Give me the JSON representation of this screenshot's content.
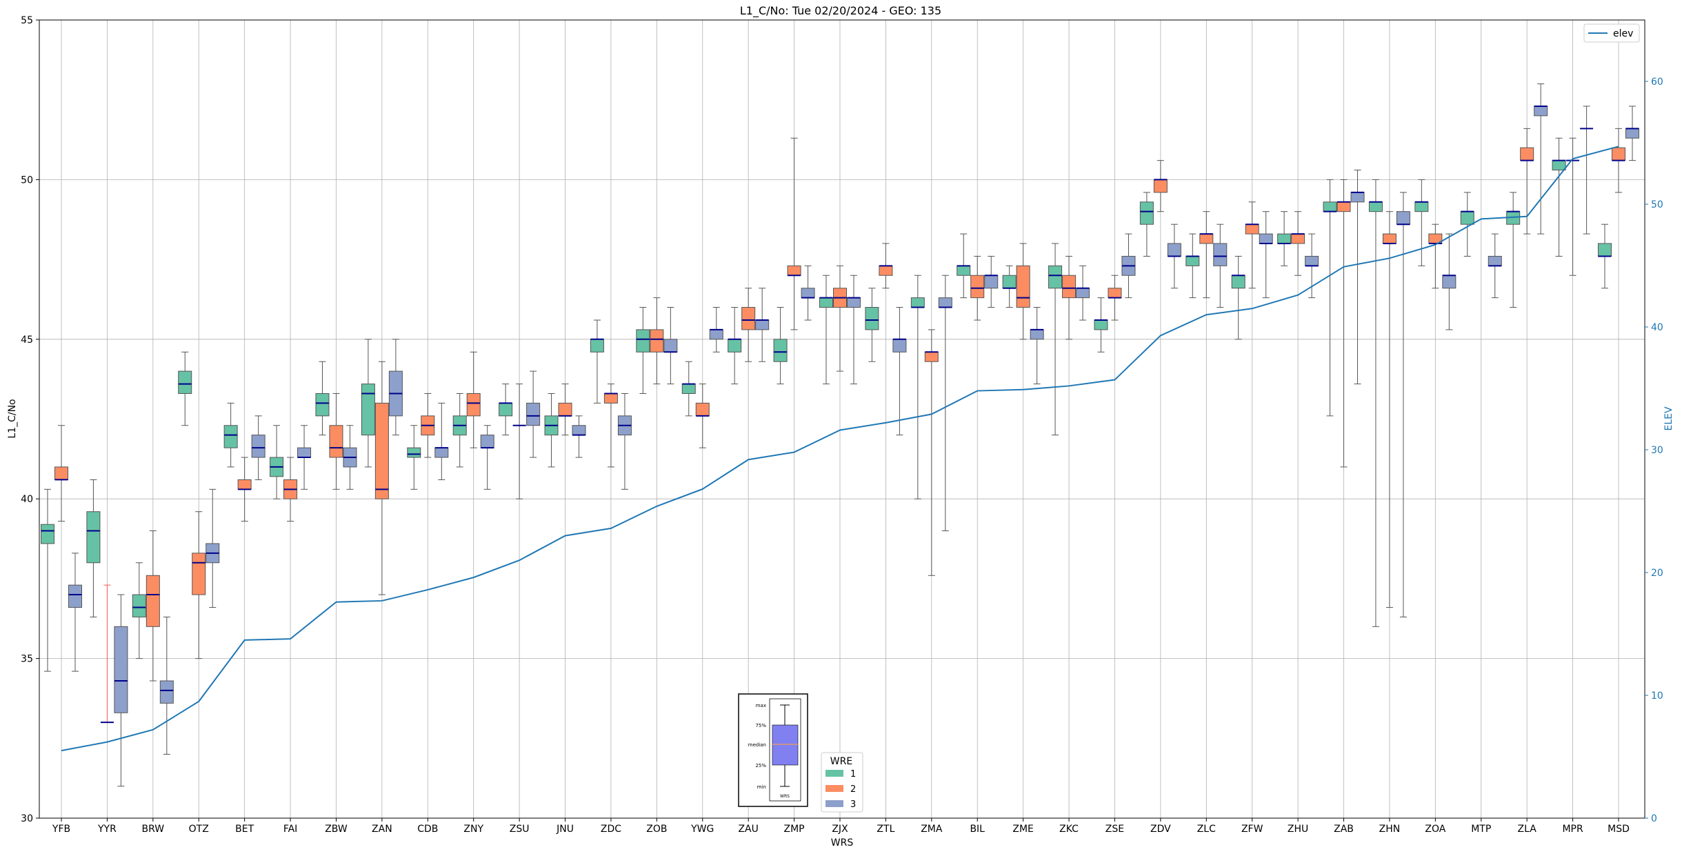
{
  "chart_data": {
    "type": "box",
    "title": "L1_C/No: Tue 02/20/2024 - GEO: 135",
    "xlabel": "WRS",
    "ylabel": "L1_C/No",
    "y2label": "ELEV",
    "ylim": [
      30,
      55
    ],
    "y2lim": [
      0,
      65
    ],
    "yticks": [
      "30",
      "35",
      "40",
      "45",
      "50",
      "55"
    ],
    "y2ticks": [
      "0",
      "10",
      "20",
      "30",
      "40",
      "50",
      "60"
    ],
    "grid": true,
    "categories": [
      "YFB",
      "YYR",
      "BRW",
      "OTZ",
      "BET",
      "FAI",
      "ZBW",
      "ZAN",
      "CDB",
      "ZNY",
      "ZSU",
      "JNU",
      "ZDC",
      "ZOB",
      "YWG",
      "ZAU",
      "ZMP",
      "ZJX",
      "ZTL",
      "ZMA",
      "BIL",
      "ZME",
      "ZKC",
      "ZSE",
      "ZDV",
      "ZLC",
      "ZFW",
      "ZHU",
      "ZAB",
      "ZHN",
      "ZOA",
      "MTP",
      "ZLA",
      "MPR",
      "MSD"
    ],
    "colors": {
      "wre1": "#66c2a5",
      "wre2": "#fc8d62",
      "wre3": "#8da0cb",
      "elev": "#1f77b4",
      "median": "#00008b",
      "outlier_line": "#ff5555"
    },
    "legend_elev": {
      "label": "elev",
      "position": "top-right"
    },
    "legend_wre": {
      "title": "WRE",
      "labels": [
        "1",
        "2",
        "3"
      ],
      "position": "bottom-center"
    },
    "key_box": {
      "labels": [
        "max",
        "75%",
        "median",
        "25%",
        "min"
      ],
      "xlabel": "WRS"
    },
    "series": [
      {
        "name": "1",
        "boxes": [
          [
            34.6,
            38.6,
            39.0,
            39.2,
            40.3
          ],
          [
            36.3,
            38.0,
            39.0,
            39.6,
            40.6
          ],
          [
            35.0,
            36.3,
            36.6,
            37.0,
            38.0
          ],
          [
            42.3,
            43.3,
            43.6,
            44.0,
            44.6
          ],
          [
            41.0,
            41.6,
            42.0,
            42.3,
            43.0
          ],
          [
            40.0,
            40.7,
            41.0,
            41.3,
            42.3
          ],
          [
            42.0,
            42.6,
            43.0,
            43.3,
            44.3
          ],
          [
            41.0,
            42.0,
            43.3,
            43.6,
            45.0
          ],
          [
            40.3,
            41.3,
            41.4,
            41.6,
            42.3
          ],
          [
            41.0,
            42.0,
            42.3,
            42.6,
            43.3
          ],
          [
            42.0,
            42.6,
            43.0,
            43.0,
            43.6
          ],
          [
            41.0,
            42.0,
            42.3,
            42.6,
            43.3
          ],
          [
            43.0,
            44.6,
            45.0,
            45.0,
            45.6
          ],
          [
            43.3,
            44.6,
            45.0,
            45.3,
            46.0
          ],
          [
            42.6,
            43.3,
            43.6,
            43.6,
            44.3
          ],
          [
            43.6,
            44.6,
            45.0,
            45.0,
            46.0
          ],
          [
            43.6,
            44.3,
            44.6,
            45.0,
            46.0
          ],
          [
            43.6,
            46.0,
            46.3,
            46.3,
            47.0
          ],
          [
            44.3,
            45.3,
            45.6,
            46.0,
            46.6
          ],
          [
            40.0,
            46.0,
            46.0,
            46.3,
            47.0
          ],
          [
            46.3,
            47.0,
            47.3,
            47.3,
            48.3
          ],
          [
            46.0,
            46.6,
            46.6,
            47.0,
            47.3
          ],
          [
            42.0,
            46.6,
            47.0,
            47.3,
            48.0
          ],
          [
            44.6,
            45.3,
            45.6,
            45.6,
            46.3
          ],
          [
            47.6,
            48.6,
            49.0,
            49.3,
            49.6
          ],
          [
            46.3,
            47.3,
            47.6,
            47.6,
            48.3
          ],
          [
            45.0,
            46.6,
            47.0,
            47.0,
            47.6
          ],
          [
            47.3,
            48.0,
            48.0,
            48.3,
            49.0
          ],
          [
            42.6,
            49.0,
            49.0,
            49.3,
            50.0
          ],
          [
            36.0,
            49.0,
            49.3,
            49.3,
            50.0
          ],
          [
            47.3,
            49.0,
            49.3,
            49.3,
            50.0
          ],
          [
            47.6,
            48.6,
            49.0,
            49.0,
            49.6
          ],
          [
            46.0,
            48.6,
            49.0,
            49.0,
            49.6
          ],
          [
            47.6,
            50.3,
            50.6,
            50.6,
            51.3
          ],
          [
            46.6,
            47.6,
            47.6,
            48.0,
            48.6
          ]
        ]
      },
      {
        "name": "2",
        "boxes": [
          [
            39.3,
            40.6,
            40.6,
            41.0,
            42.3
          ],
          [
            33.0,
            33.0,
            33.0,
            33.0,
            37.3
          ],
          [
            34.3,
            36.0,
            37.0,
            37.6,
            39.0
          ],
          [
            35.0,
            37.0,
            38.0,
            38.3,
            39.6
          ],
          [
            39.3,
            40.3,
            40.3,
            40.6,
            41.3
          ],
          [
            39.3,
            40.0,
            40.3,
            40.6,
            41.3
          ],
          [
            40.3,
            41.3,
            41.6,
            42.3,
            43.3
          ],
          [
            37.0,
            40.0,
            40.3,
            43.0,
            44.3
          ],
          [
            41.3,
            42.0,
            42.3,
            42.6,
            43.3
          ],
          [
            41.6,
            42.6,
            43.0,
            43.3,
            44.6
          ],
          [
            40.0,
            42.3,
            42.3,
            42.3,
            43.6
          ],
          [
            42.0,
            42.6,
            42.6,
            43.0,
            43.6
          ],
          [
            41.0,
            43.0,
            43.3,
            43.3,
            43.6
          ],
          [
            43.6,
            44.6,
            45.0,
            45.3,
            46.3
          ],
          [
            41.6,
            42.6,
            42.6,
            43.0,
            43.6
          ],
          [
            44.3,
            45.3,
            45.6,
            46.0,
            46.6
          ],
          [
            45.3,
            47.0,
            47.0,
            47.3,
            51.3
          ],
          [
            44.0,
            46.0,
            46.3,
            46.6,
            47.3
          ],
          [
            46.6,
            47.0,
            47.3,
            47.3,
            48.0
          ],
          [
            37.6,
            44.3,
            44.6,
            44.6,
            45.3
          ],
          [
            45.6,
            46.3,
            46.6,
            47.0,
            47.6
          ],
          [
            45.0,
            46.0,
            46.3,
            47.3,
            48.0
          ],
          [
            45.0,
            46.3,
            46.6,
            47.0,
            47.6
          ],
          [
            45.6,
            46.3,
            46.3,
            46.6,
            47.0
          ],
          [
            49.0,
            49.6,
            50.0,
            50.0,
            50.6
          ],
          [
            46.3,
            48.0,
            48.3,
            48.3,
            49.0
          ],
          [
            46.6,
            48.3,
            48.6,
            48.6,
            49.3
          ],
          [
            47.0,
            48.0,
            48.3,
            48.3,
            49.0
          ],
          [
            41.0,
            49.0,
            49.3,
            49.3,
            50.0
          ],
          [
            36.6,
            48.0,
            48.0,
            48.3,
            49.0
          ],
          [
            46.6,
            48.0,
            48.0,
            48.3,
            48.6
          ],
          [
            48.3,
            50.6,
            50.6,
            51.0,
            51.6
          ],
          [
            47.0,
            50.6,
            50.6,
            50.6,
            51.3
          ],
          [
            49.6,
            50.6,
            50.6,
            51.0,
            51.6
          ]
        ],
        "categories": [
          "YFB",
          "YYR",
          "BRW",
          "OTZ",
          "BET",
          "FAI",
          "ZBW",
          "ZAN",
          "CDB",
          "ZNY",
          "ZSU",
          "JNU",
          "ZDC",
          "ZOB",
          "YWG",
          "ZAU",
          "ZMP",
          "ZJX",
          "ZTL",
          "ZMA",
          "BIL",
          "ZME",
          "ZKC",
          "ZSE",
          "ZDV",
          "ZLC",
          "ZFW",
          "ZHU",
          "ZAB",
          "ZHN",
          "ZOA",
          "ZLA",
          "MPR",
          "MSD"
        ]
      },
      {
        "name": "3",
        "boxes": [
          [
            34.6,
            36.6,
            37.0,
            37.3,
            38.3
          ],
          [
            31.0,
            33.3,
            34.3,
            36.0,
            37.0
          ],
          [
            32.0,
            33.6,
            34.0,
            34.3,
            36.3
          ],
          [
            36.6,
            38.0,
            38.3,
            38.6,
            40.3
          ],
          [
            40.6,
            41.3,
            41.6,
            42.0,
            42.6
          ],
          [
            40.3,
            41.3,
            41.3,
            41.6,
            42.3
          ],
          [
            40.3,
            41.0,
            41.3,
            41.6,
            42.3
          ],
          [
            42.0,
            42.6,
            43.3,
            44.0,
            45.0
          ],
          [
            40.6,
            41.3,
            41.6,
            41.6,
            43.0
          ],
          [
            40.3,
            41.6,
            41.6,
            42.0,
            42.3
          ],
          [
            41.3,
            42.3,
            42.6,
            43.0,
            44.0
          ],
          [
            41.3,
            42.0,
            42.0,
            42.3,
            42.6
          ],
          [
            40.3,
            42.0,
            42.3,
            42.6,
            43.3
          ],
          [
            43.6,
            44.6,
            44.6,
            45.0,
            46.0
          ],
          [
            44.6,
            45.0,
            45.3,
            45.3,
            46.0
          ],
          [
            44.3,
            45.3,
            45.6,
            45.6,
            46.6
          ],
          [
            45.6,
            46.3,
            46.3,
            46.6,
            47.3
          ],
          [
            43.6,
            46.0,
            46.3,
            46.3,
            47.0
          ],
          [
            42.0,
            44.6,
            45.0,
            45.0,
            46.0
          ],
          [
            39.0,
            46.0,
            46.0,
            46.3,
            47.0
          ],
          [
            46.0,
            46.6,
            47.0,
            47.0,
            47.6
          ],
          [
            43.6,
            45.0,
            45.3,
            45.3,
            46.0
          ],
          [
            45.6,
            46.3,
            46.6,
            46.6,
            47.3
          ],
          [
            46.3,
            47.0,
            47.3,
            47.6,
            48.3
          ],
          [
            46.6,
            47.6,
            47.6,
            48.0,
            48.6
          ],
          [
            46.0,
            47.3,
            47.6,
            48.0,
            48.6
          ],
          [
            46.3,
            48.0,
            48.0,
            48.3,
            49.0
          ],
          [
            46.3,
            47.3,
            47.3,
            47.6,
            48.3
          ],
          [
            43.6,
            49.3,
            49.6,
            49.6,
            50.3
          ],
          [
            36.3,
            48.6,
            48.6,
            49.0,
            49.6
          ],
          [
            45.3,
            46.6,
            47.0,
            47.0,
            48.3
          ],
          [
            46.3,
            47.3,
            47.3,
            47.6,
            48.3
          ],
          [
            48.3,
            52.0,
            52.3,
            52.3,
            53.0
          ],
          [
            48.3,
            51.6,
            51.6,
            51.6,
            52.3
          ],
          [
            50.6,
            51.3,
            51.6,
            51.6,
            52.3
          ]
        ],
        "categories": [
          "YFB",
          "YYR",
          "BRW",
          "OTZ",
          "BET",
          "FAI",
          "ZBW",
          "ZAN",
          "CDB",
          "ZNY",
          "ZSU",
          "JNU",
          "ZDC",
          "ZOB",
          "YWG",
          "ZAU",
          "ZMP",
          "ZJX",
          "ZTL",
          "ZMA",
          "BIL",
          "ZME",
          "ZKC",
          "ZSE",
          "ZDV",
          "ZLC",
          "ZFW",
          "ZHU",
          "ZAB",
          "ZHN",
          "ZOA",
          "MTP",
          "ZLA",
          "MPR",
          "MSD"
        ]
      }
    ],
    "elev": {
      "name": "elev",
      "values": [
        5.5,
        6.2,
        7.2,
        9.5,
        14.5,
        14.6,
        17.6,
        17.7,
        18.6,
        19.6,
        21.0,
        23.0,
        23.6,
        25.4,
        26.8,
        29.2,
        29.8,
        31.6,
        32.2,
        32.9,
        34.8,
        34.9,
        35.2,
        35.7,
        39.3,
        41.0,
        41.5,
        42.6,
        44.9,
        45.6,
        46.7,
        48.8,
        49.0,
        53.7,
        54.7
      ]
    }
  }
}
